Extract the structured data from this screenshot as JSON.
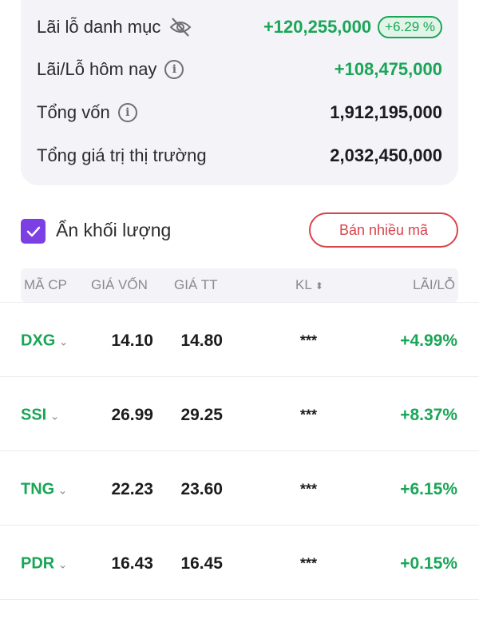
{
  "summary": {
    "portfolio_pl_label": "Lãi lỗ danh mục",
    "portfolio_pl_value": "+120,255,000",
    "portfolio_pl_pct": "+6.29 %",
    "today_pl_label": "Lãi/Lỗ hôm nay",
    "today_pl_value": "+108,475,000",
    "total_capital_label": "Tổng vốn",
    "total_capital_value": "1,912,195,000",
    "market_value_label": "Tổng giá trị thị trường",
    "market_value_value": "2,032,450,000"
  },
  "hide_volume": {
    "label": "Ẩn khối lượng",
    "checked": true
  },
  "sell_multiple_label": "Bán nhiều mã",
  "table": {
    "headers": [
      "MÃ CP",
      "GIÁ VỐN",
      "GIÁ TT",
      "KL",
      "LÃI/LỖ"
    ],
    "rows": [
      {
        "symbol": "DXG",
        "cost": "14.10",
        "price": "14.80",
        "volume": "***",
        "pl": "+4.99%"
      },
      {
        "symbol": "SSI",
        "cost": "26.99",
        "price": "29.25",
        "volume": "***",
        "pl": "+8.37%"
      },
      {
        "symbol": "TNG",
        "cost": "22.23",
        "price": "23.60",
        "volume": "***",
        "pl": "+6.15%"
      },
      {
        "symbol": "PDR",
        "cost": "16.43",
        "price": "16.45",
        "volume": "***",
        "pl": "+0.15%"
      }
    ]
  },
  "colors": {
    "positive": "#1aa557",
    "accent": "#7b3fe4",
    "sell": "#d9434a"
  }
}
